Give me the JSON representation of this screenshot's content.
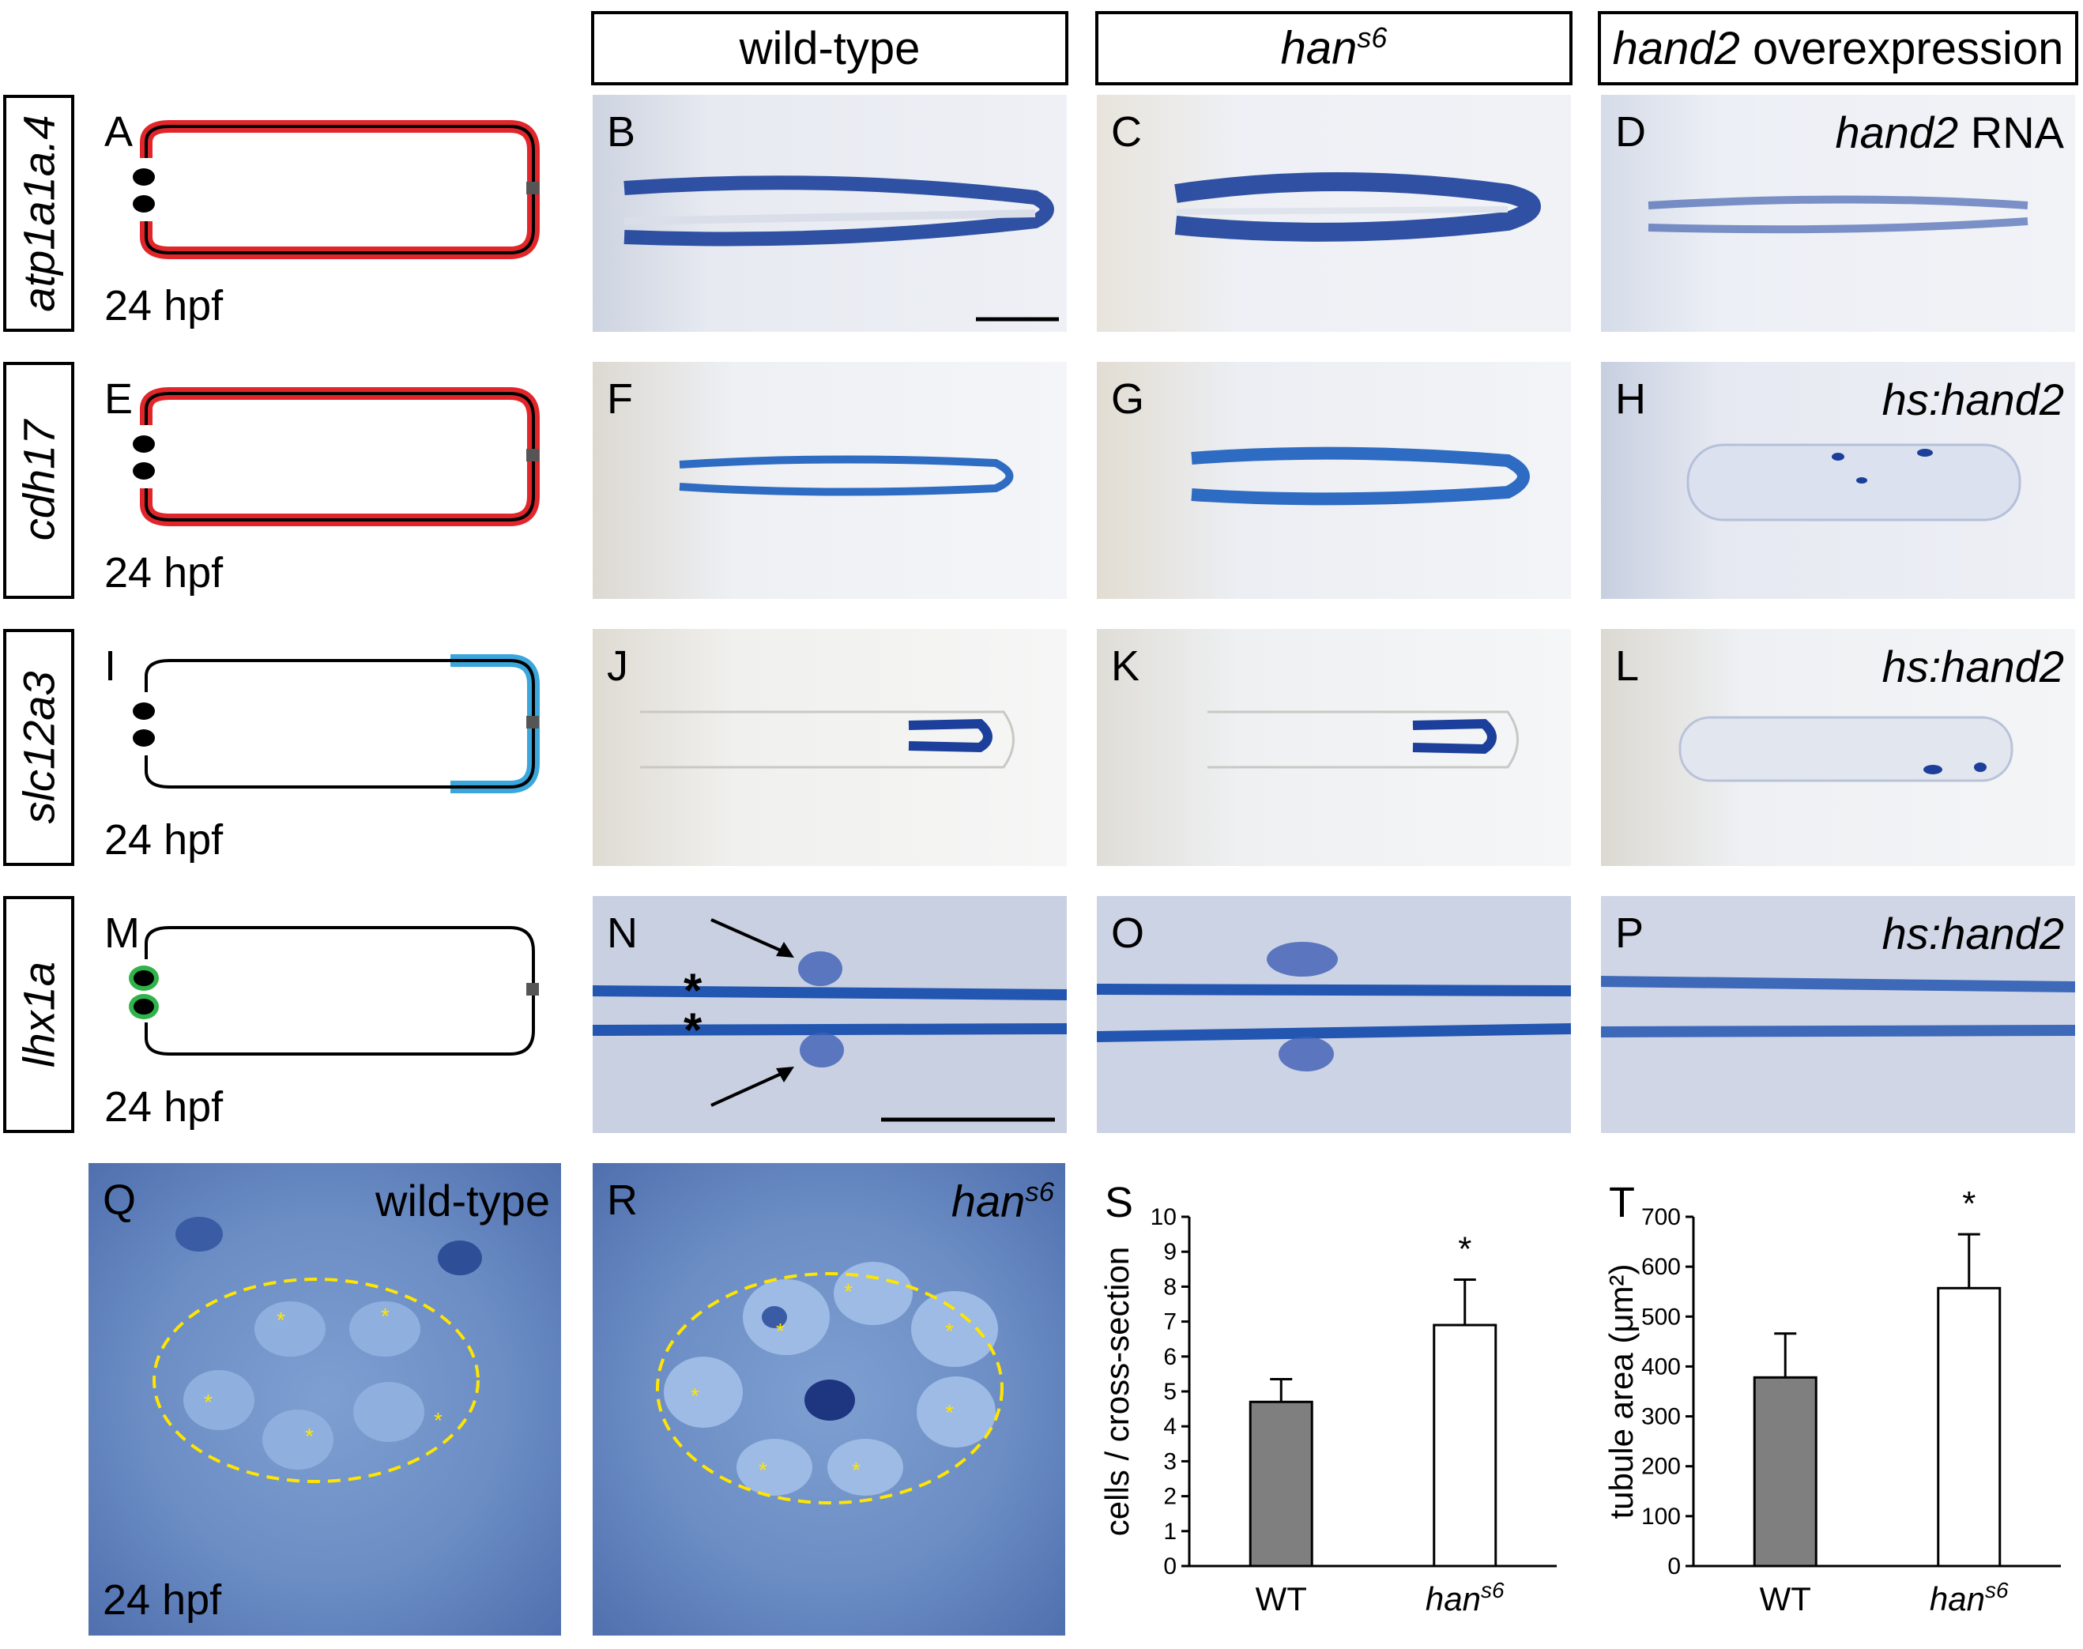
{
  "column_headers": {
    "wild_type": "wild-type",
    "mutant_base": "han",
    "mutant_sup": "s6",
    "overexp_italic": "hand2",
    "overexp_rest": " overexpression"
  },
  "rows": [
    {
      "gene": "atp1a1a.4",
      "schematic_label": "A",
      "stage": "24 hpf",
      "panels": [
        "B",
        "C",
        "D"
      ],
      "treatment_italic": "hand2",
      "treatment_rest": " RNA"
    },
    {
      "gene": "cdh17",
      "schematic_label": "E",
      "stage": "24 hpf",
      "panels": [
        "F",
        "G",
        "H"
      ],
      "treatment_italic": "hs:hand2",
      "treatment_rest": ""
    },
    {
      "gene": "slc12a3",
      "schematic_label": "I",
      "stage": "24 hpf",
      "panels": [
        "J",
        "K",
        "L"
      ],
      "treatment_italic": "hs:hand2",
      "treatment_rest": ""
    },
    {
      "gene": "lhx1a",
      "schematic_label": "M",
      "stage": "24 hpf",
      "panels": [
        "N",
        "O",
        "P"
      ],
      "treatment_italic": "hs:hand2",
      "treatment_rest": ""
    }
  ],
  "histology": {
    "Q": {
      "label": "Q",
      "title": "wild-type",
      "stage": "24 hpf"
    },
    "R": {
      "label": "R",
      "title_base": "han",
      "title_sup": "s6"
    }
  },
  "colors": {
    "segment_red": "#e0262b",
    "segment_blue": "#3aa6dc",
    "segment_green": "#2fb34a",
    "stain_blue": "#1b3f9a",
    "bar_wt": "#7f7f7f",
    "bar_mut": "#ffffff",
    "dash_yellow": "#ffe500"
  },
  "chart_data": [
    {
      "panel": "S",
      "type": "bar",
      "title": "",
      "categories": [
        "WT",
        "han"
      ],
      "category_sup": [
        "",
        "s6"
      ],
      "values": [
        4.7,
        6.9
      ],
      "errors": [
        0.65,
        1.3
      ],
      "ylabel": "cells / cross-section",
      "ylim": [
        0,
        10
      ],
      "yticks": [
        "0",
        "1",
        "2",
        "3",
        "4",
        "5",
        "6",
        "7",
        "8",
        "9",
        "10"
      ],
      "significance": "*"
    },
    {
      "panel": "T",
      "type": "bar",
      "title": "",
      "categories": [
        "WT",
        "han"
      ],
      "category_sup": [
        "",
        "s6"
      ],
      "values": [
        378,
        557
      ],
      "errors": [
        88,
        108
      ],
      "ylabel": "tubule area (μm²)",
      "ylim": [
        0,
        700
      ],
      "yticks": [
        "0",
        "100",
        "200",
        "300",
        "400",
        "500",
        "600",
        "700"
      ],
      "significance": "*"
    }
  ]
}
